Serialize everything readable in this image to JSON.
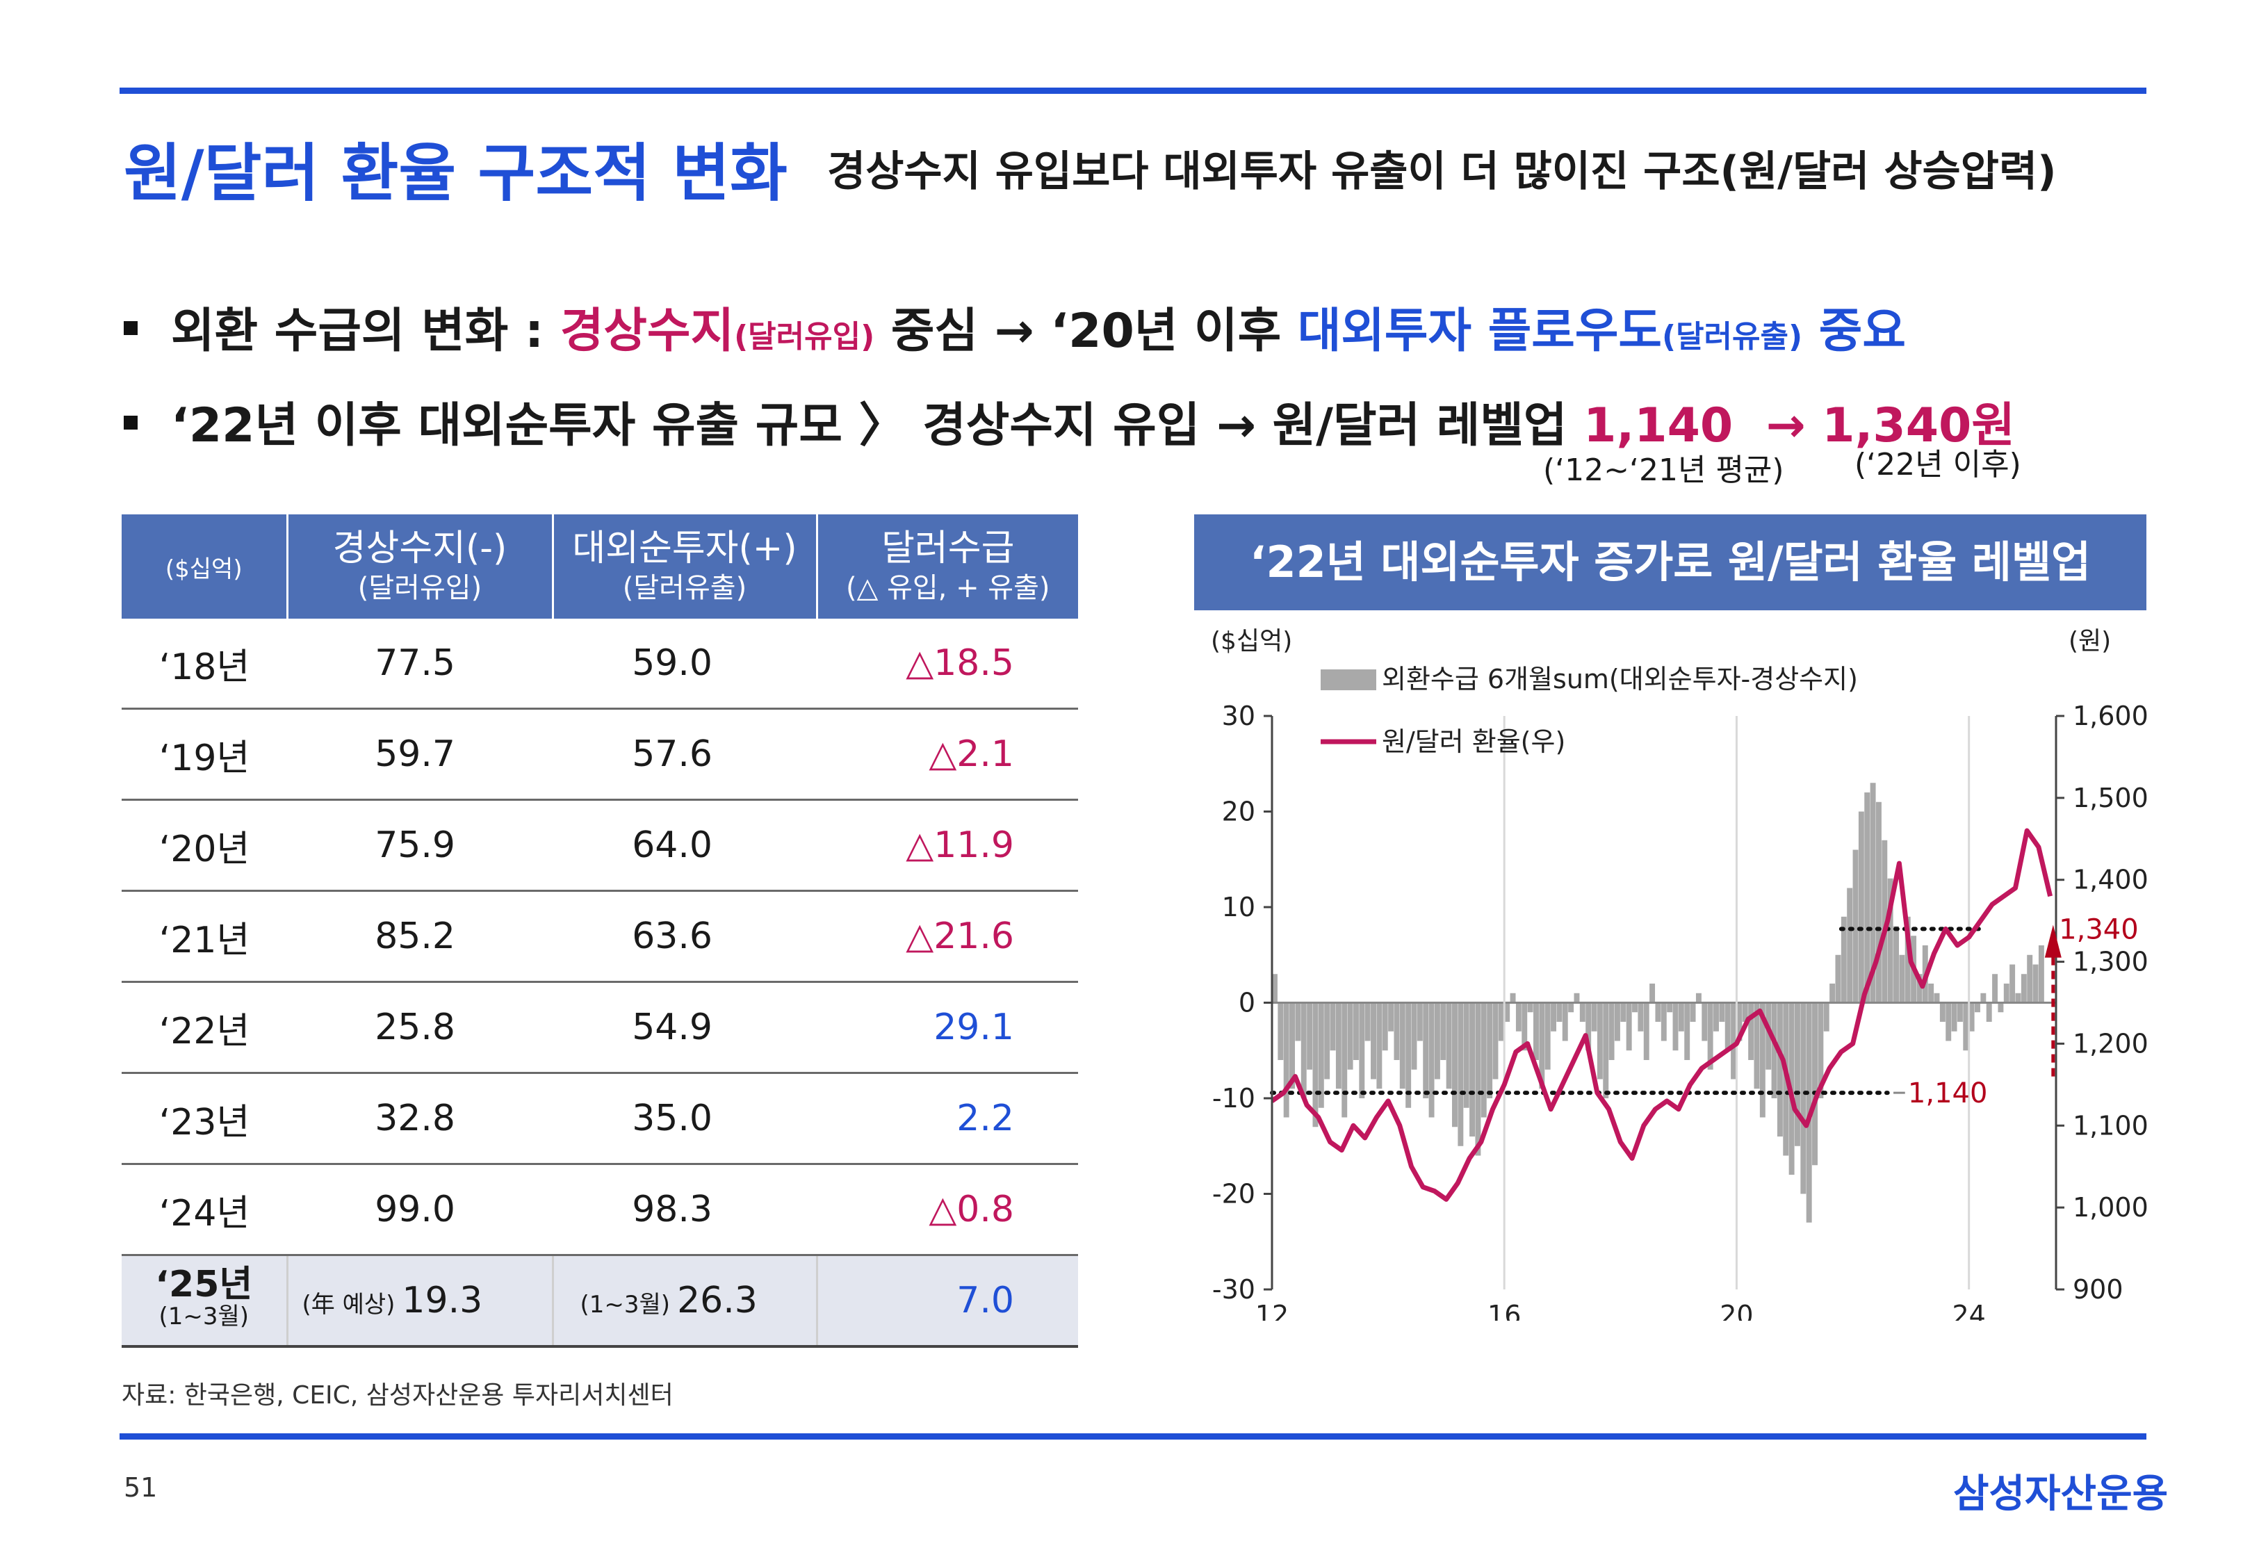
{
  "title": "원/달러 환율 구조적 변화",
  "subtitle": "경상수지 유입보다 대외투자 유출이 더 많이진 구조(원/달러 상승압력)",
  "bullet1": {
    "p1": "외환 수급의 변화 : ",
    "p2": "경상수지",
    "p3": "(달러유입)",
    "p4": " 중심 → ‘20년 이후 ",
    "p5": "대외투자 플로우도",
    "p6": "(달러유출)",
    "p7": " 중요"
  },
  "bullet2": {
    "p1": "‘22년 이후 대외순투자 유출 규모 ",
    "p2": "〉",
    "p3": " 경상수지 유입 → 원/달러 레벨업 ",
    "p4": "1,140",
    "p5": "  → ",
    "p6": "1,340원",
    "note1": "(‘12~‘21년 평균)",
    "note2": "(‘22년 이후)"
  },
  "table": {
    "unit": "($십억)",
    "headers": [
      {
        "main": "경상수지(-)",
        "sub": "(달러유입)"
      },
      {
        "main": "대외순투자(+)",
        "sub": "(달러유출)"
      },
      {
        "main": "달러수급",
        "sub": "(△ 유입, + 유출)"
      }
    ],
    "rows": [
      {
        "year": "‘18년",
        "ca": "77.5",
        "ni": "59.0",
        "net": "△18.5"
      },
      {
        "year": "‘19년",
        "ca": "59.7",
        "ni": "57.6",
        "net": "△2.1"
      },
      {
        "year": "‘20년",
        "ca": "75.9",
        "ni": "64.0",
        "net": "△11.9"
      },
      {
        "year": "‘21년",
        "ca": "85.2",
        "ni": "63.6",
        "net": "△21.6"
      },
      {
        "year": "‘22년",
        "ca": "25.8",
        "ni": "54.9",
        "net": "29.1"
      },
      {
        "year": "‘23년",
        "ca": "32.8",
        "ni": "35.0",
        "net": "2.2"
      },
      {
        "year": "‘24년",
        "ca": "99.0",
        "ni": "98.3",
        "net": "△0.8"
      }
    ],
    "last": {
      "year": "‘25년",
      "year_sub": "(1~3월)",
      "ca_pre": "(年 예상)",
      "ca": "19.3",
      "ni_pre": "(1~3월)",
      "ni": "26.3",
      "net": "7.0"
    },
    "colors": {
      "negative": "#c0175d",
      "positive": "#1f4fd6"
    }
  },
  "source": "자료: 한국은행, CEIC, 삼성자산운용 투자리서치센터",
  "page_number": "51",
  "brand": "삼성자산운용",
  "chart_data": {
    "type": "bar+line",
    "title": "‘22년 대외순투자 증가로 원/달러 환율 레벨업",
    "left_unit": "($십억)",
    "right_unit": "(원)",
    "left_ylim": [
      -30,
      30
    ],
    "left_ticks": [
      "30",
      "20",
      "10",
      "0",
      "-10",
      "-20",
      "-30"
    ],
    "right_ylim": [
      900,
      1600
    ],
    "right_ticks": [
      "1,600",
      "1,500",
      "1,400",
      "1,300",
      "1,200",
      "1,100",
      "1,000",
      "900"
    ],
    "x_ticks": [
      "12",
      "16",
      "20",
      "24"
    ],
    "x_range": [
      12,
      25.5
    ],
    "legend": [
      "외환수급 6개월sum(대외순투자-경상수지)",
      "원/달러 환율(우)"
    ],
    "bar_color": "#a9a9a9",
    "line_color": "#c0175d",
    "annotation_high": "1,340",
    "annotation_low": "1,140",
    "level_high": 1340,
    "level_low": 1140,
    "bar_series": [
      [
        12.0,
        3.0
      ],
      [
        12.1,
        -6.0
      ],
      [
        12.2,
        -12.0
      ],
      [
        12.3,
        -9.0
      ],
      [
        12.4,
        -4.0
      ],
      [
        12.5,
        -10.0
      ],
      [
        12.6,
        -7.0
      ],
      [
        12.7,
        -13.0
      ],
      [
        12.8,
        -11.0
      ],
      [
        12.9,
        -8.0
      ],
      [
        13.0,
        -5.0
      ],
      [
        13.1,
        -9.0
      ],
      [
        13.2,
        -12.0
      ],
      [
        13.3,
        -7.0
      ],
      [
        13.4,
        -6.0
      ],
      [
        13.5,
        -10.0
      ],
      [
        13.6,
        -4.0
      ],
      [
        13.7,
        -8.0
      ],
      [
        13.8,
        -9.0
      ],
      [
        13.9,
        -5.0
      ],
      [
        14.0,
        -3.0
      ],
      [
        14.1,
        -6.0
      ],
      [
        14.2,
        -9.0
      ],
      [
        14.3,
        -11.0
      ],
      [
        14.4,
        -7.0
      ],
      [
        14.5,
        -4.0
      ],
      [
        14.6,
        -10.0
      ],
      [
        14.7,
        -12.0
      ],
      [
        14.8,
        -8.0
      ],
      [
        14.9,
        -6.0
      ],
      [
        15.0,
        -9.0
      ],
      [
        15.1,
        -13.0
      ],
      [
        15.2,
        -15.0
      ],
      [
        15.3,
        -11.0
      ],
      [
        15.4,
        -14.0
      ],
      [
        15.5,
        -16.0
      ],
      [
        15.6,
        -12.0
      ],
      [
        15.7,
        -10.0
      ],
      [
        15.8,
        -8.0
      ],
      [
        15.9,
        -4.0
      ],
      [
        16.0,
        -2.0
      ],
      [
        16.1,
        1.0
      ],
      [
        16.2,
        -3.0
      ],
      [
        16.3,
        -5.0
      ],
      [
        16.4,
        -1.0
      ],
      [
        16.5,
        -6.0
      ],
      [
        16.6,
        -9.0
      ],
      [
        16.7,
        -7.0
      ],
      [
        16.8,
        -3.0
      ],
      [
        16.9,
        -2.0
      ],
      [
        17.0,
        -4.0
      ],
      [
        17.1,
        -1.0
      ],
      [
        17.2,
        1.0
      ],
      [
        17.3,
        -2.0
      ],
      [
        17.4,
        -5.0
      ],
      [
        17.5,
        -3.0
      ],
      [
        17.6,
        -8.0
      ],
      [
        17.7,
        -10.0
      ],
      [
        17.8,
        -6.0
      ],
      [
        17.9,
        -4.0
      ],
      [
        18.0,
        -2.0
      ],
      [
        18.1,
        -5.0
      ],
      [
        18.2,
        -1.0
      ],
      [
        18.3,
        -3.0
      ],
      [
        18.4,
        -6.0
      ],
      [
        18.5,
        2.0
      ],
      [
        18.6,
        -2.0
      ],
      [
        18.7,
        -4.0
      ],
      [
        18.8,
        -1.0
      ],
      [
        18.9,
        -5.0
      ],
      [
        19.0,
        -3.0
      ],
      [
        19.1,
        -6.0
      ],
      [
        19.2,
        -2.0
      ],
      [
        19.3,
        1.0
      ],
      [
        19.4,
        -4.0
      ],
      [
        19.5,
        -7.0
      ],
      [
        19.6,
        -3.0
      ],
      [
        19.7,
        -2.0
      ],
      [
        19.8,
        -5.0
      ],
      [
        19.9,
        -8.0
      ],
      [
        20.0,
        -4.0
      ],
      [
        20.1,
        -2.0
      ],
      [
        20.2,
        -6.0
      ],
      [
        20.3,
        -9.0
      ],
      [
        20.4,
        -12.0
      ],
      [
        20.5,
        -7.0
      ],
      [
        20.6,
        -10.0
      ],
      [
        20.7,
        -14.0
      ],
      [
        20.8,
        -16.0
      ],
      [
        20.9,
        -18.0
      ],
      [
        21.0,
        -15.0
      ],
      [
        21.1,
        -20.0
      ],
      [
        21.2,
        -23.0
      ],
      [
        21.3,
        -17.0
      ],
      [
        21.4,
        -10.0
      ],
      [
        21.5,
        -3.0
      ],
      [
        21.6,
        2.0
      ],
      [
        21.7,
        5.0
      ],
      [
        21.8,
        9.0
      ],
      [
        21.9,
        12.0
      ],
      [
        22.0,
        16.0
      ],
      [
        22.1,
        20.0
      ],
      [
        22.2,
        22.0
      ],
      [
        22.3,
        23.0
      ],
      [
        22.4,
        21.0
      ],
      [
        22.5,
        17.0
      ],
      [
        22.6,
        13.0
      ],
      [
        22.7,
        8.0
      ],
      [
        22.8,
        5.0
      ],
      [
        22.9,
        9.0
      ],
      [
        23.0,
        7.0
      ],
      [
        23.1,
        3.0
      ],
      [
        23.2,
        6.0
      ],
      [
        23.3,
        2.0
      ],
      [
        23.4,
        1.0
      ],
      [
        23.5,
        -2.0
      ],
      [
        23.6,
        -4.0
      ],
      [
        23.7,
        -3.0
      ],
      [
        23.8,
        -2.0
      ],
      [
        23.9,
        -5.0
      ],
      [
        24.0,
        -3.0
      ],
      [
        24.1,
        -1.0
      ],
      [
        24.2,
        1.0
      ],
      [
        24.3,
        -2.0
      ],
      [
        24.4,
        3.0
      ],
      [
        24.5,
        -1.0
      ],
      [
        24.6,
        2.0
      ],
      [
        24.7,
        4.0
      ],
      [
        24.8,
        1.0
      ],
      [
        24.9,
        3.0
      ],
      [
        25.0,
        5.0
      ],
      [
        25.1,
        4.0
      ],
      [
        25.2,
        6.0
      ]
    ],
    "line_series": [
      [
        12.0,
        1130
      ],
      [
        12.2,
        1140
      ],
      [
        12.4,
        1160
      ],
      [
        12.6,
        1125
      ],
      [
        12.8,
        1110
      ],
      [
        13.0,
        1080
      ],
      [
        13.2,
        1070
      ],
      [
        13.4,
        1100
      ],
      [
        13.6,
        1085
      ],
      [
        13.8,
        1110
      ],
      [
        14.0,
        1130
      ],
      [
        14.2,
        1100
      ],
      [
        14.4,
        1050
      ],
      [
        14.6,
        1025
      ],
      [
        14.8,
        1020
      ],
      [
        15.0,
        1010
      ],
      [
        15.2,
        1030
      ],
      [
        15.4,
        1060
      ],
      [
        15.6,
        1080
      ],
      [
        15.8,
        1120
      ],
      [
        16.0,
        1150
      ],
      [
        16.2,
        1190
      ],
      [
        16.4,
        1200
      ],
      [
        16.6,
        1160
      ],
      [
        16.8,
        1120
      ],
      [
        17.0,
        1150
      ],
      [
        17.2,
        1180
      ],
      [
        17.4,
        1210
      ],
      [
        17.6,
        1140
      ],
      [
        17.8,
        1120
      ],
      [
        18.0,
        1080
      ],
      [
        18.2,
        1060
      ],
      [
        18.4,
        1100
      ],
      [
        18.6,
        1120
      ],
      [
        18.8,
        1130
      ],
      [
        19.0,
        1120
      ],
      [
        19.2,
        1150
      ],
      [
        19.4,
        1170
      ],
      [
        19.6,
        1180
      ],
      [
        19.8,
        1190
      ],
      [
        20.0,
        1200
      ],
      [
        20.2,
        1230
      ],
      [
        20.4,
        1240
      ],
      [
        20.6,
        1210
      ],
      [
        20.8,
        1180
      ],
      [
        21.0,
        1120
      ],
      [
        21.2,
        1100
      ],
      [
        21.4,
        1140
      ],
      [
        21.6,
        1170
      ],
      [
        21.8,
        1190
      ],
      [
        22.0,
        1200
      ],
      [
        22.2,
        1260
      ],
      [
        22.4,
        1300
      ],
      [
        22.6,
        1350
      ],
      [
        22.8,
        1420
      ],
      [
        23.0,
        1300
      ],
      [
        23.2,
        1270
      ],
      [
        23.4,
        1310
      ],
      [
        23.6,
        1340
      ],
      [
        23.8,
        1320
      ],
      [
        24.0,
        1330
      ],
      [
        24.2,
        1350
      ],
      [
        24.4,
        1370
      ],
      [
        24.6,
        1380
      ],
      [
        24.8,
        1390
      ],
      [
        25.0,
        1460
      ],
      [
        25.2,
        1440
      ],
      [
        25.4,
        1380
      ]
    ]
  }
}
